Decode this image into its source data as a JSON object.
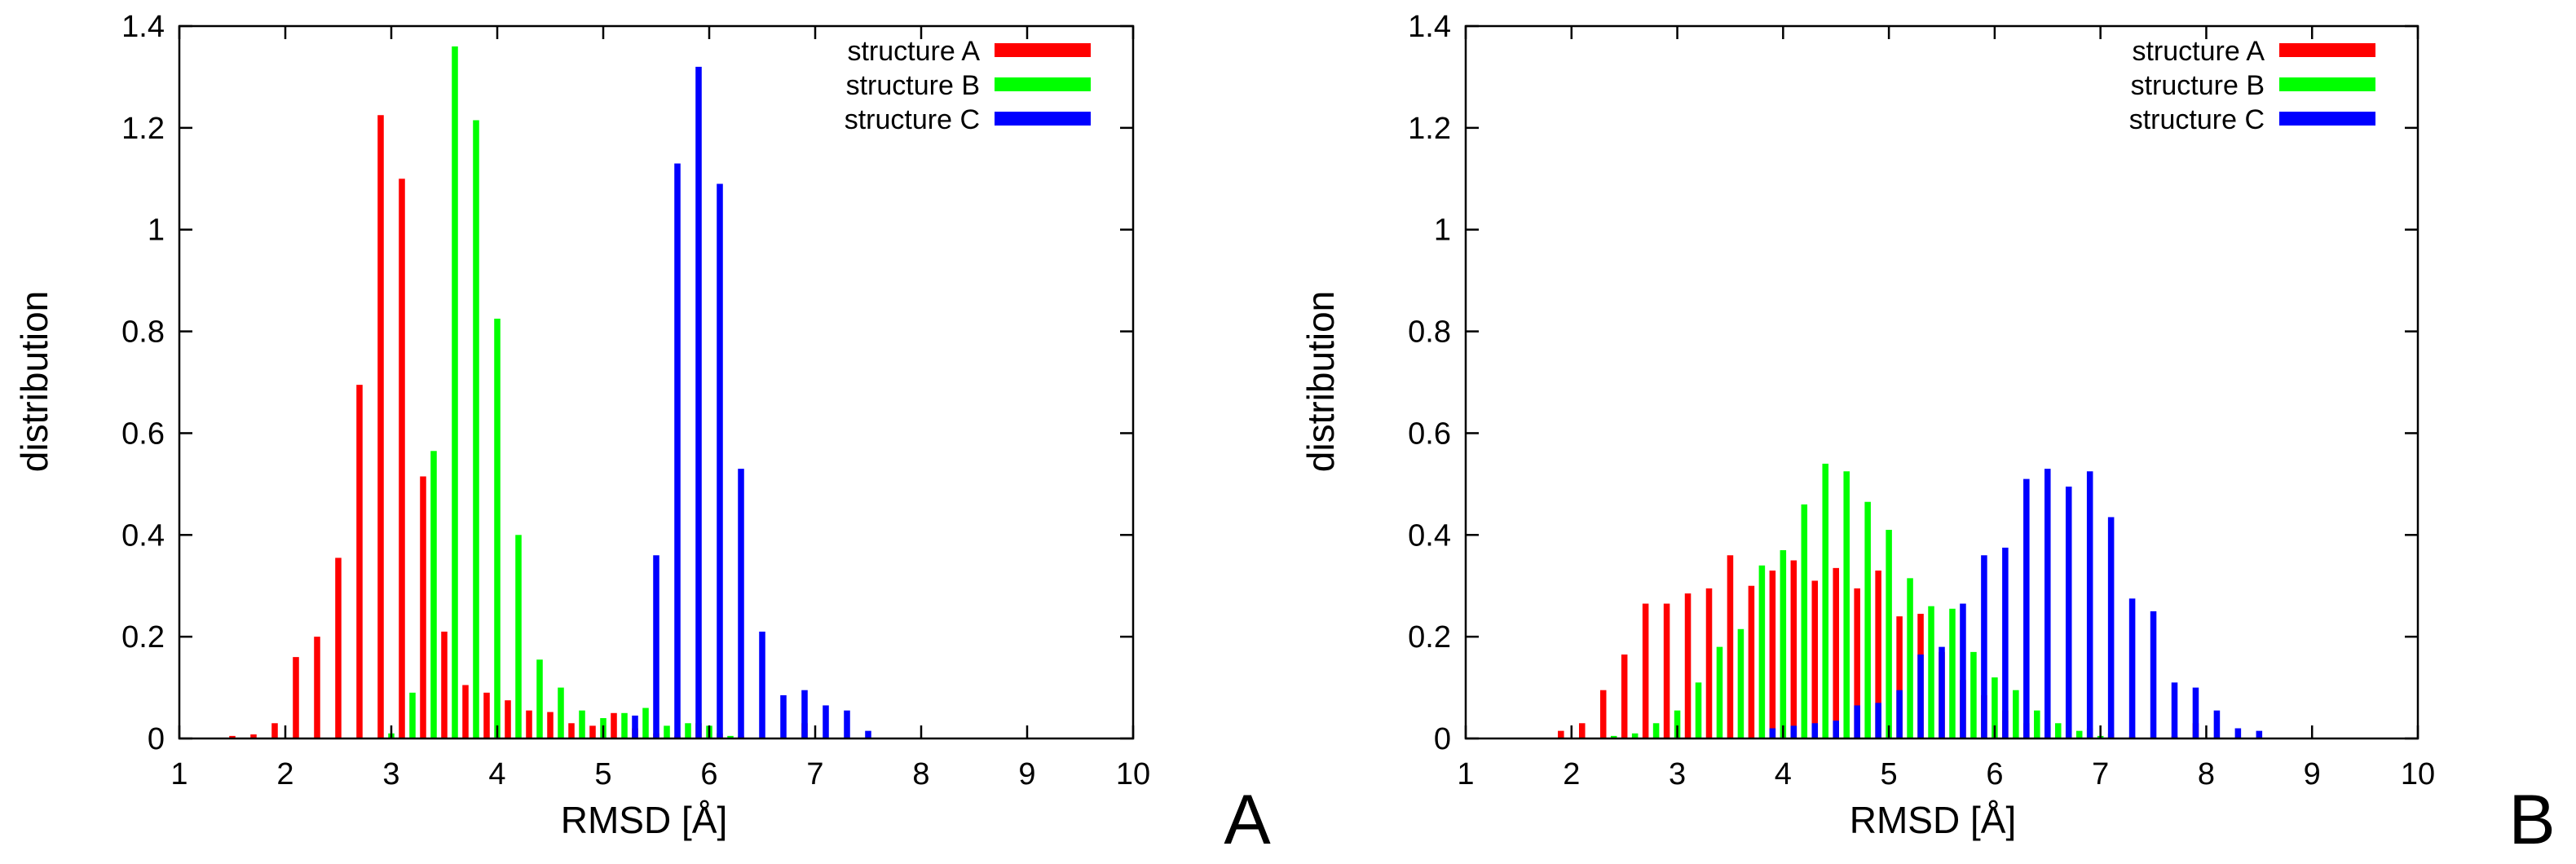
{
  "chart_data": [
    {
      "type": "bar",
      "panel_label": "A",
      "xlabel": "RMSD [Å]",
      "ylabel": "distribution",
      "xlim": [
        1,
        10
      ],
      "ylim": [
        0,
        1.4
      ],
      "xticks": [
        "1",
        "2",
        "3",
        "4",
        "5",
        "6",
        "7",
        "8",
        "9",
        "10"
      ],
      "yticks": [
        "0",
        "0.2",
        "0.4",
        "0.6",
        "0.8",
        "1",
        "1.2",
        "1.4"
      ],
      "legend_position": "top-right",
      "grid": false,
      "series": [
        {
          "name": "structure A",
          "color": "#ff0000",
          "points": [
            [
              1.5,
              0.005
            ],
            [
              1.7,
              0.008
            ],
            [
              1.9,
              0.03
            ],
            [
              2.1,
              0.16
            ],
            [
              2.3,
              0.2
            ],
            [
              2.5,
              0.355
            ],
            [
              2.7,
              0.695
            ],
            [
              2.9,
              1.225
            ],
            [
              3.1,
              1.1
            ],
            [
              3.3,
              0.515
            ],
            [
              3.5,
              0.21
            ],
            [
              3.7,
              0.105
            ],
            [
              3.9,
              0.09
            ],
            [
              4.1,
              0.075
            ],
            [
              4.3,
              0.055
            ],
            [
              4.5,
              0.052
            ],
            [
              4.7,
              0.03
            ],
            [
              4.9,
              0.025
            ],
            [
              5.1,
              0.05
            ],
            [
              5.3,
              0.02
            ],
            [
              5.5,
              0.01
            ],
            [
              5.7,
              0.005
            ],
            [
              5.9,
              0.03
            ],
            [
              6.1,
              0.01
            ],
            [
              6.3,
              0.005
            ],
            [
              6.9,
              0.03
            ]
          ]
        },
        {
          "name": "structure B",
          "color": "#00ff00",
          "points": [
            [
              3.0,
              0.01
            ],
            [
              3.2,
              0.09
            ],
            [
              3.4,
              0.565
            ],
            [
              3.6,
              1.36
            ],
            [
              3.8,
              1.215
            ],
            [
              4.0,
              0.825
            ],
            [
              4.2,
              0.4
            ],
            [
              4.4,
              0.155
            ],
            [
              4.6,
              0.1
            ],
            [
              4.8,
              0.055
            ],
            [
              5.0,
              0.04
            ],
            [
              5.2,
              0.05
            ],
            [
              5.4,
              0.06
            ],
            [
              5.6,
              0.025
            ],
            [
              5.8,
              0.03
            ],
            [
              6.0,
              0.025
            ],
            [
              6.2,
              0.005
            ]
          ]
        },
        {
          "name": "structure C",
          "color": "#0000ff",
          "points": [
            [
              5.3,
              0.045
            ],
            [
              5.5,
              0.36
            ],
            [
              5.7,
              1.13
            ],
            [
              5.9,
              1.32
            ],
            [
              6.1,
              1.09
            ],
            [
              6.3,
              0.53
            ],
            [
              6.5,
              0.21
            ],
            [
              6.7,
              0.085
            ],
            [
              6.9,
              0.095
            ],
            [
              7.1,
              0.065
            ],
            [
              7.3,
              0.055
            ],
            [
              7.5,
              0.015
            ]
          ]
        }
      ]
    },
    {
      "type": "bar",
      "panel_label": "B",
      "xlabel": "RMSD [Å]",
      "ylabel": "distribution",
      "xlim": [
        1,
        10
      ],
      "ylim": [
        0,
        1.4
      ],
      "xticks": [
        "1",
        "2",
        "3",
        "4",
        "5",
        "6",
        "7",
        "8",
        "9",
        "10"
      ],
      "yticks": [
        "0",
        "0.2",
        "0.4",
        "0.6",
        "0.8",
        "1",
        "1.2",
        "1.4"
      ],
      "legend_position": "top-right",
      "grid": false,
      "series": [
        {
          "name": "structure A",
          "color": "#ff0000",
          "points": [
            [
              1.9,
              0.015
            ],
            [
              2.1,
              0.03
            ],
            [
              2.3,
              0.095
            ],
            [
              2.5,
              0.165
            ],
            [
              2.7,
              0.265
            ],
            [
              2.9,
              0.265
            ],
            [
              3.1,
              0.285
            ],
            [
              3.3,
              0.295
            ],
            [
              3.5,
              0.36
            ],
            [
              3.7,
              0.3
            ],
            [
              3.9,
              0.33
            ],
            [
              4.1,
              0.35
            ],
            [
              4.3,
              0.31
            ],
            [
              4.5,
              0.335
            ],
            [
              4.7,
              0.295
            ],
            [
              4.9,
              0.33
            ],
            [
              5.1,
              0.24
            ],
            [
              5.3,
              0.245
            ],
            [
              5.5,
              0.17
            ],
            [
              5.7,
              0.115
            ],
            [
              5.9,
              0.085
            ],
            [
              6.1,
              0.055
            ],
            [
              6.3,
              0.03
            ],
            [
              6.5,
              0.025
            ],
            [
              6.7,
              0.015
            ],
            [
              6.9,
              0.02
            ],
            [
              7.1,
              0.01
            ],
            [
              7.3,
              0.005
            ],
            [
              7.7,
              0.005
            ],
            [
              7.9,
              0.03
            ]
          ]
        },
        {
          "name": "structure B",
          "color": "#00ff00",
          "points": [
            [
              2.4,
              0.005
            ],
            [
              2.6,
              0.01
            ],
            [
              2.8,
              0.03
            ],
            [
              3.0,
              0.055
            ],
            [
              3.2,
              0.11
            ],
            [
              3.4,
              0.18
            ],
            [
              3.6,
              0.215
            ],
            [
              3.8,
              0.34
            ],
            [
              4.0,
              0.37
            ],
            [
              4.2,
              0.46
            ],
            [
              4.4,
              0.54
            ],
            [
              4.6,
              0.525
            ],
            [
              4.8,
              0.465
            ],
            [
              5.0,
              0.41
            ],
            [
              5.2,
              0.315
            ],
            [
              5.4,
              0.26
            ],
            [
              5.6,
              0.255
            ],
            [
              5.8,
              0.17
            ],
            [
              6.0,
              0.12
            ],
            [
              6.2,
              0.095
            ],
            [
              6.4,
              0.055
            ],
            [
              6.6,
              0.03
            ],
            [
              6.8,
              0.015
            ],
            [
              7.0,
              0.005
            ]
          ]
        },
        {
          "name": "structure C",
          "color": "#0000ff",
          "points": [
            [
              3.9,
              0.02
            ],
            [
              4.1,
              0.025
            ],
            [
              4.3,
              0.03
            ],
            [
              4.5,
              0.035
            ],
            [
              4.7,
              0.065
            ],
            [
              4.9,
              0.07
            ],
            [
              5.1,
              0.095
            ],
            [
              5.3,
              0.165
            ],
            [
              5.5,
              0.18
            ],
            [
              5.7,
              0.265
            ],
            [
              5.9,
              0.36
            ],
            [
              6.1,
              0.375
            ],
            [
              6.3,
              0.51
            ],
            [
              6.5,
              0.53
            ],
            [
              6.7,
              0.495
            ],
            [
              6.9,
              0.525
            ],
            [
              7.1,
              0.435
            ],
            [
              7.3,
              0.275
            ],
            [
              7.5,
              0.25
            ],
            [
              7.7,
              0.11
            ],
            [
              7.9,
              0.1
            ],
            [
              8.1,
              0.055
            ],
            [
              8.3,
              0.02
            ],
            [
              8.5,
              0.015
            ]
          ]
        }
      ]
    }
  ]
}
